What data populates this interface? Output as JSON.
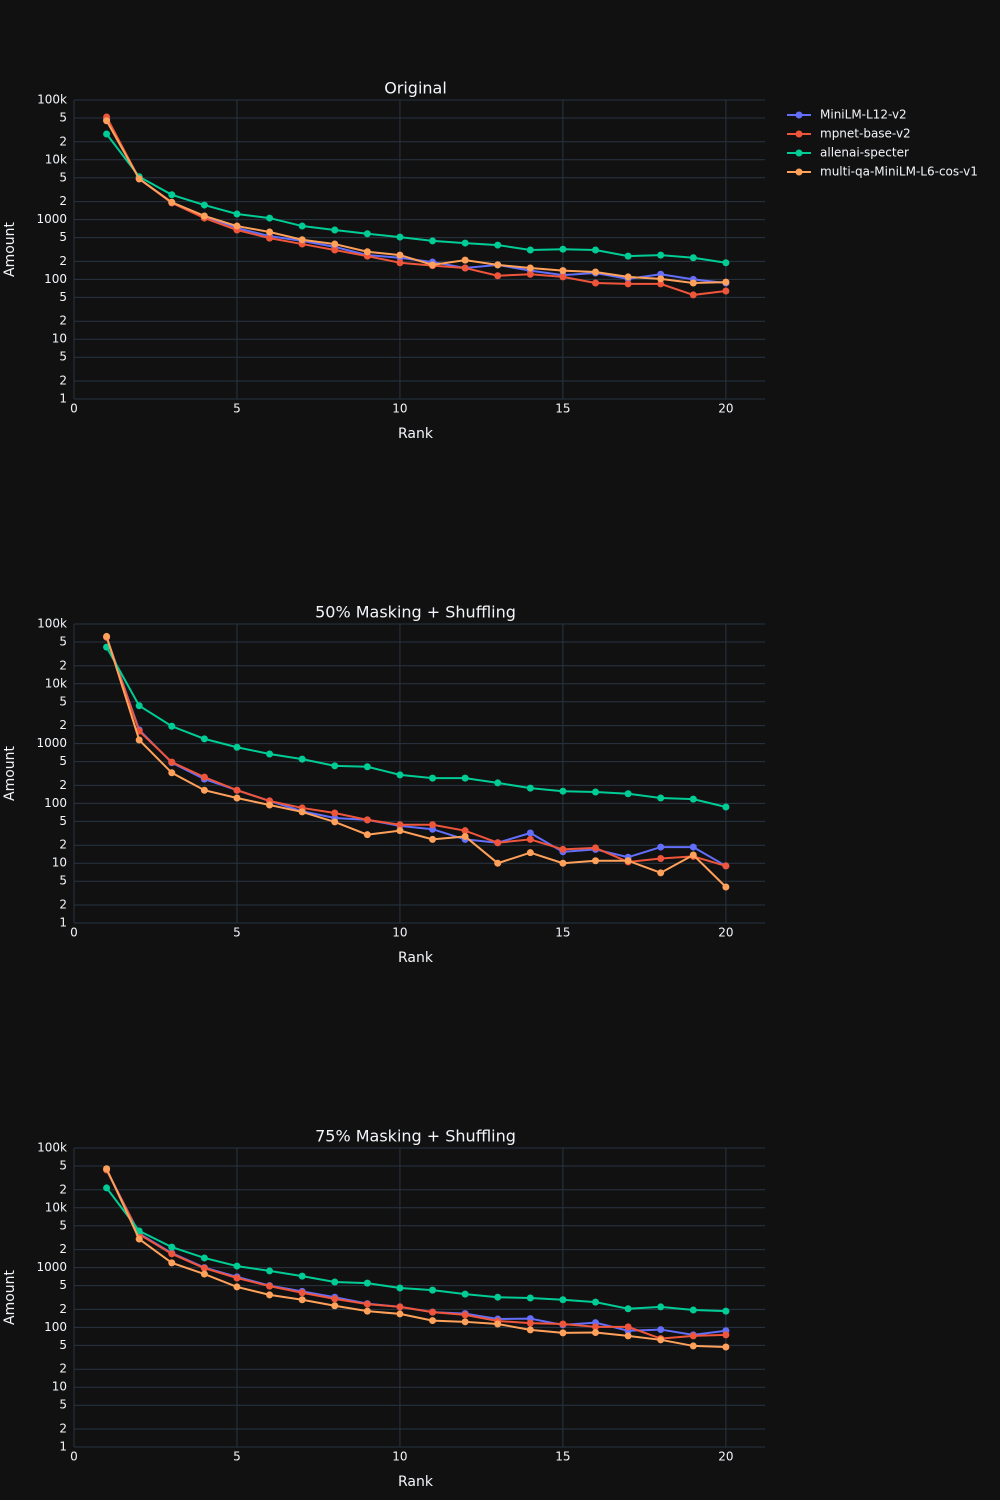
{
  "chart_data": [
    {
      "type": "line",
      "title": "Original",
      "xlabel": "Rank",
      "ylabel": "Amount",
      "log_y": true,
      "grid": true,
      "legend": "top-right",
      "x": [
        1,
        2,
        3,
        4,
        5,
        6,
        7,
        8,
        9,
        10,
        11,
        12,
        13,
        14,
        15,
        16,
        17,
        18,
        19,
        20
      ],
      "xlim": [
        0,
        21.2
      ],
      "xticks": [
        0,
        5,
        10,
        15,
        20
      ],
      "ylim": [
        1,
        100000
      ],
      "yticks": [
        1,
        2,
        5,
        10,
        {
          "value": 20,
          "label": "2"
        },
        {
          "value": 50,
          "label": "5"
        },
        100,
        {
          "value": 200,
          "label": "2"
        },
        {
          "value": 500,
          "label": "5"
        },
        1000,
        {
          "value": 2000,
          "label": "2"
        },
        {
          "value": 5000,
          "label": "5"
        },
        {
          "value": 10000,
          "label": "10k"
        },
        {
          "value": 20000,
          "label": "2"
        },
        {
          "value": 50000,
          "label": "5"
        },
        {
          "value": 100000,
          "label": "100k"
        }
      ],
      "series": [
        {
          "name": "MiniLM-L12-v2",
          "color": "#636efa",
          "values": [
            47000,
            4800,
            1900,
            1100,
            720,
            530,
            440,
            350,
            255,
            230,
            195,
            155,
            175,
            140,
            118,
            128,
            102,
            122,
            100,
            87
          ]
        },
        {
          "name": "mpnet-base-v2",
          "color": "#ef553b",
          "values": [
            52000,
            4800,
            1900,
            1060,
            670,
            490,
            390,
            310,
            245,
            190,
            170,
            155,
            115,
            122,
            110,
            87,
            84,
            84,
            55,
            64
          ]
        },
        {
          "name": "allenai-specter",
          "color": "#00cc96",
          "values": [
            27000,
            5200,
            2600,
            1750,
            1240,
            1060,
            780,
            670,
            580,
            510,
            440,
            405,
            375,
            310,
            320,
            310,
            245,
            255,
            230,
            190
          ]
        },
        {
          "name": "multi-qa-MiniLM-L6-cos-v1",
          "color": "#ffa15a",
          "values": [
            45000,
            4800,
            1950,
            1150,
            780,
            620,
            460,
            390,
            290,
            255,
            175,
            210,
            175,
            155,
            140,
            133,
            110,
            102,
            87,
            90
          ]
        }
      ]
    },
    {
      "type": "line",
      "title": "50% Masking + Shuffling",
      "xlabel": "Rank",
      "ylabel": "Amount",
      "log_y": true,
      "grid": true,
      "x": [
        1,
        2,
        3,
        4,
        5,
        6,
        7,
        8,
        9,
        10,
        11,
        12,
        13,
        14,
        15,
        16,
        17,
        18,
        19,
        20
      ],
      "xlim": [
        0,
        21.2
      ],
      "xticks": [
        0,
        5,
        10,
        15,
        20
      ],
      "ylim": [
        1,
        100000
      ],
      "yticks": [
        1,
        2,
        5,
        10,
        {
          "value": 20,
          "label": "2"
        },
        {
          "value": 50,
          "label": "5"
        },
        100,
        {
          "value": 200,
          "label": "2"
        },
        {
          "value": 500,
          "label": "5"
        },
        1000,
        {
          "value": 2000,
          "label": "2"
        },
        {
          "value": 5000,
          "label": "5"
        },
        {
          "value": 10000,
          "label": "10k"
        },
        {
          "value": 20000,
          "label": "2"
        },
        {
          "value": 50000,
          "label": "5"
        },
        {
          "value": 100000,
          "label": "100k"
        }
      ],
      "series": [
        {
          "color": "#636efa",
          "values": [
            60000,
            1700,
            480,
            255,
            166,
            110,
            74,
            57,
            53,
            42,
            37,
            25,
            22,
            32,
            15.5,
            17,
            12.6,
            18.6,
            18.6,
            9
          ]
        },
        {
          "color": "#ef553b",
          "values": [
            60000,
            1620,
            490,
            275,
            166,
            110,
            84,
            69,
            53,
            44,
            44,
            35,
            22,
            25,
            17,
            18,
            10.5,
            12,
            13,
            9
          ]
        },
        {
          "color": "#00cc96",
          "values": [
            41000,
            4300,
            1950,
            1200,
            870,
            670,
            550,
            425,
            410,
            300,
            265,
            265,
            220,
            180,
            160,
            155,
            145,
            123,
            118,
            87
          ]
        },
        {
          "color": "#ffa15a",
          "values": [
            62000,
            1150,
            325,
            166,
            123,
            94,
            72,
            49,
            30,
            35,
            25,
            28,
            10,
            15,
            10,
            11,
            11,
            6.9,
            13.7,
            4
          ]
        }
      ]
    },
    {
      "type": "line",
      "title": "75% Masking + Shuffling",
      "xlabel": "Rank",
      "ylabel": "Amount",
      "log_y": true,
      "grid": true,
      "x": [
        1,
        2,
        3,
        4,
        5,
        6,
        7,
        8,
        9,
        10,
        11,
        12,
        13,
        14,
        15,
        16,
        17,
        18,
        19,
        20
      ],
      "xlim": [
        0,
        21.2
      ],
      "xticks": [
        0,
        5,
        10,
        15,
        20
      ],
      "ylim": [
        1,
        100000
      ],
      "yticks": [
        1,
        2,
        5,
        10,
        {
          "value": 20,
          "label": "2"
        },
        {
          "value": 50,
          "label": "5"
        },
        100,
        {
          "value": 200,
          "label": "2"
        },
        {
          "value": 500,
          "label": "5"
        },
        1000,
        {
          "value": 2000,
          "label": "2"
        },
        {
          "value": 5000,
          "label": "5"
        },
        {
          "value": 10000,
          "label": "10k"
        },
        {
          "value": 20000,
          "label": "2"
        },
        {
          "value": 50000,
          "label": "5"
        },
        {
          "value": 100000,
          "label": "100k"
        }
      ],
      "series": [
        {
          "color": "#636efa",
          "values": [
            43000,
            3700,
            1750,
            1000,
            700,
            500,
            400,
            320,
            250,
            220,
            180,
            170,
            138,
            140,
            110,
            120,
            88,
            92,
            75,
            88
          ]
        },
        {
          "color": "#ef553b",
          "values": [
            43000,
            3600,
            1700,
            980,
            670,
            490,
            380,
            300,
            245,
            220,
            180,
            162,
            128,
            118,
            114,
            102,
            102,
            65,
            72,
            75
          ]
        },
        {
          "color": "#00cc96",
          "values": [
            21500,
            4100,
            2200,
            1450,
            1060,
            880,
            720,
            575,
            550,
            455,
            420,
            360,
            320,
            310,
            290,
            265,
            205,
            220,
            195,
            187
          ]
        },
        {
          "color": "#ffa15a",
          "values": [
            45000,
            3000,
            1200,
            780,
            475,
            350,
            290,
            230,
            187,
            168,
            130,
            124,
            114,
            91,
            81,
            82,
            72,
            62,
            49,
            47
          ]
        }
      ]
    }
  ]
}
